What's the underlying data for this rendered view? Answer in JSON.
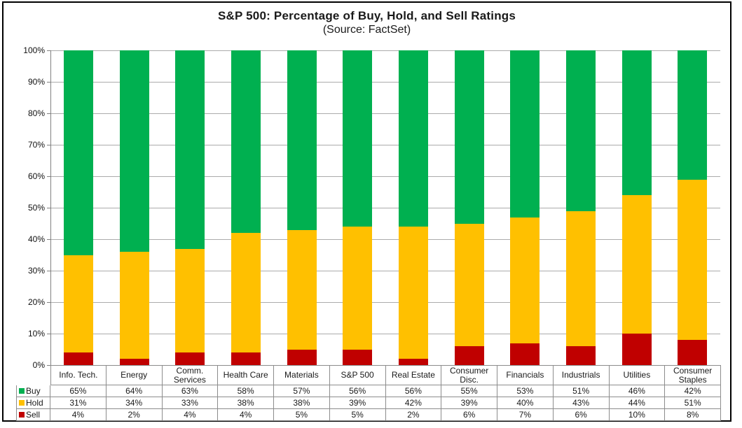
{
  "title": "S&P 500: Percentage of Buy, Hold, and Sell Ratings",
  "subtitle": "(Source: FactSet)",
  "colors": {
    "buy": "#00B050",
    "hold": "#FFC000",
    "sell": "#C00000",
    "gridline": "#ababab",
    "axis": "#808080",
    "table_border": "#8c8c8c",
    "text": "#1a1a1a",
    "frame_border": "#000000"
  },
  "chart_data": {
    "type": "bar",
    "stacked": true,
    "normalized_to_100": true,
    "title": "S&P 500: Percentage of Buy, Hold, and Sell Ratings",
    "subtitle": "(Source: FactSet)",
    "categories": [
      "Info. Tech.",
      "Energy",
      "Comm. Services",
      "Health Care",
      "Materials",
      "S&P 500",
      "Real Estate",
      "Consumer Disc.",
      "Financials",
      "Industrials",
      "Utilities",
      "Consumer Staples"
    ],
    "series": [
      {
        "name": "Buy",
        "color_key": "buy",
        "values": [
          65,
          64,
          63,
          58,
          57,
          56,
          56,
          55,
          53,
          51,
          46,
          42
        ]
      },
      {
        "name": "Hold",
        "color_key": "hold",
        "values": [
          31,
          34,
          33,
          38,
          38,
          39,
          42,
          39,
          40,
          43,
          44,
          51
        ]
      },
      {
        "name": "Sell",
        "color_key": "sell",
        "values": [
          4,
          2,
          4,
          4,
          5,
          5,
          2,
          6,
          7,
          6,
          10,
          8
        ]
      }
    ],
    "xlabel": "",
    "ylabel": "",
    "ylim": [
      0,
      100
    ],
    "ytick_step": 10,
    "ytick_suffix": "%",
    "value_suffix": "%",
    "grid": true,
    "legend_position": "data-table-left"
  }
}
